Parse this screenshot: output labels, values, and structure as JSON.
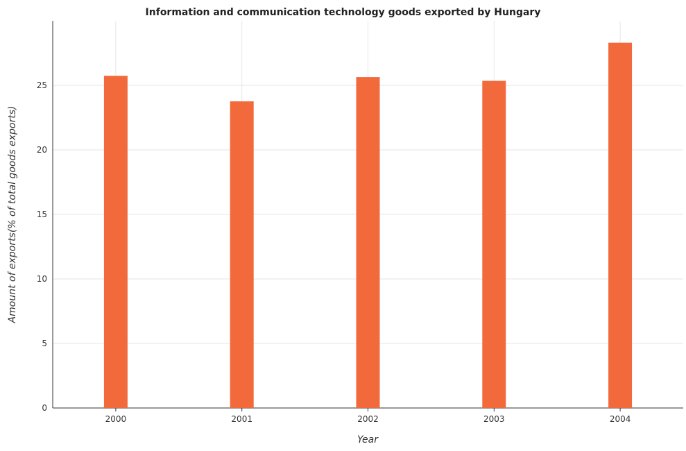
{
  "chart_data": {
    "type": "bar",
    "title": "Information and communication technology goods exported by Hungary",
    "xlabel": "Year",
    "ylabel": "Amount of exports(% of total goods exports)",
    "categories": [
      "2000",
      "2001",
      "2002",
      "2003",
      "2004"
    ],
    "values": [
      25.74,
      23.76,
      25.64,
      25.35,
      28.3
    ],
    "ylim": [
      0,
      30
    ],
    "yticks": [
      0,
      5,
      10,
      15,
      20,
      25
    ],
    "grid": true,
    "bar_color": "#f26a3c"
  }
}
